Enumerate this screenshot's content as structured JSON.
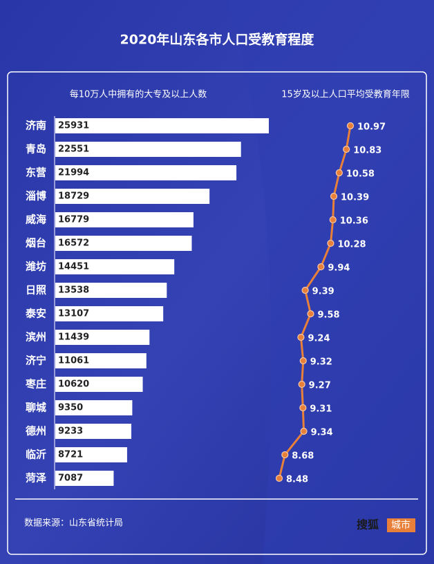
{
  "title": "2020年山东各市人口受教育程度",
  "chart_data": [
    {
      "type": "bar",
      "title": "每10万人中拥有的大专及以上人数",
      "categories": [
        "济南",
        "青岛",
        "东营",
        "淄博",
        "威海",
        "烟台",
        "潍坊",
        "日照",
        "泰安",
        "滨州",
        "济宁",
        "枣庄",
        "聊城",
        "德州",
        "临沂",
        "菏泽"
      ],
      "values": [
        25931,
        22551,
        21994,
        18729,
        16779,
        16572,
        14451,
        13538,
        13107,
        11439,
        11061,
        10620,
        9350,
        9233,
        8721,
        7087
      ],
      "color": "#ffffff"
    },
    {
      "type": "line",
      "title": "15岁及以上人口平均受教育年限",
      "values": [
        10.97,
        10.83,
        10.58,
        10.39,
        10.36,
        10.28,
        9.94,
        9.39,
        9.58,
        9.24,
        9.32,
        9.27,
        9.31,
        9.34,
        8.68,
        8.48
      ],
      "color": "#e8803a"
    }
  ],
  "source": "数据来源：山东省统计局",
  "logo": [
    "搜狐",
    "城市"
  ]
}
